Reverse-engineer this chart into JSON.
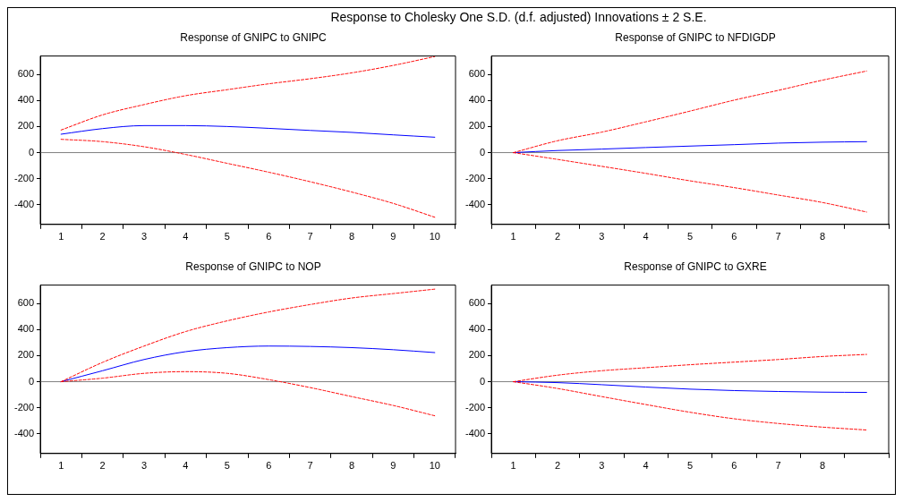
{
  "chart_data": [
    {
      "type": "line",
      "title": "Response of GNIPC to GNIPC",
      "annotations": [
        "Response to Cholesky One S.D. (d.f. adjusted) Innovations ± 2 S.E."
      ],
      "categories": [
        "1",
        "2",
        "3",
        "4",
        "5",
        "6",
        "7",
        "8",
        "9",
        "10"
      ],
      "ylim": [
        -550,
        740
      ],
      "yticks": [
        -400,
        -200,
        0,
        200,
        400,
        600
      ],
      "grid": false,
      "legend": false,
      "ref_lines": [
        {
          "axis": "y",
          "value": 0,
          "color": "#808080"
        }
      ],
      "series": [
        {
          "color": "#0000ff",
          "line_style": "solid",
          "values": [
            141,
            184,
            207,
            207,
            200,
            186,
            170,
            155,
            136,
            118
          ]
        },
        {
          "color": "#ff0000",
          "line_style": "dashed",
          "values": [
            173,
            289,
            368,
            436,
            482,
            527,
            566,
            611,
            668,
            736
          ]
        },
        {
          "color": "#ff0000",
          "line_style": "dashed",
          "values": [
            102,
            84,
            45,
            -14,
            -82,
            -150,
            -223,
            -302,
            -389,
            -495
          ]
        }
      ]
    },
    {
      "type": "line",
      "title": "Response of GNIPC to NFDIGDP",
      "categories": [
        "1",
        "2",
        "3",
        "4",
        "5",
        "6",
        "7",
        "8",
        null
      ],
      "ylim": [
        -550,
        740
      ],
      "yticks": [
        -400,
        -200,
        0,
        200,
        400,
        600
      ],
      "grid": false,
      "legend": false,
      "ref_lines": [
        {
          "axis": "y",
          "value": 0,
          "color": "#808080"
        }
      ],
      "series": [
        {
          "color": "#0000ff",
          "line_style": "solid",
          "values": [
            0,
            16,
            27,
            39,
            50,
            61,
            73,
            80,
            84
          ]
        },
        {
          "color": "#ff0000",
          "line_style": "dashed",
          "values": [
            0,
            91,
            157,
            236,
            318,
            402,
            477,
            555,
            625
          ]
        },
        {
          "color": "#ff0000",
          "line_style": "dashed",
          "values": [
            0,
            -52,
            -105,
            -159,
            -216,
            -268,
            -325,
            -382,
            -455
          ]
        }
      ]
    },
    {
      "type": "line",
      "title": "Response of GNIPC to NOP",
      "categories": [
        "1",
        "2",
        "3",
        "4",
        "5",
        "6",
        "7",
        "8",
        "9",
        "10"
      ],
      "ylim": [
        -550,
        740
      ],
      "yticks": [
        -400,
        -200,
        0,
        200,
        400,
        600
      ],
      "grid": false,
      "legend": false,
      "ref_lines": [
        {
          "axis": "y",
          "value": 0,
          "color": "#808080"
        }
      ],
      "series": [
        {
          "color": "#0000ff",
          "line_style": "solid",
          "values": [
            0,
            84,
            170,
            230,
            261,
            273,
            270,
            261,
            245,
            223
          ]
        },
        {
          "color": "#ff0000",
          "line_style": "dashed",
          "values": [
            0,
            148,
            273,
            384,
            466,
            534,
            591,
            641,
            675,
            709
          ]
        },
        {
          "color": "#ff0000",
          "line_style": "dashed",
          "values": [
            0,
            27,
            64,
            77,
            64,
            16,
            -45,
            -114,
            -182,
            -261
          ]
        }
      ]
    },
    {
      "type": "line",
      "title": "Response of GNIPC to GXRE",
      "categories": [
        "1",
        "2",
        "3",
        "4",
        "5",
        "6",
        "7",
        "8",
        null
      ],
      "ylim": [
        -550,
        740
      ],
      "yticks": [
        -400,
        -200,
        0,
        200,
        400,
        600
      ],
      "grid": false,
      "legend": false,
      "ref_lines": [
        {
          "axis": "y",
          "value": 0,
          "color": "#808080"
        }
      ],
      "series": [
        {
          "color": "#0000ff",
          "line_style": "solid",
          "values": [
            0,
            -7,
            -23,
            -41,
            -57,
            -68,
            -75,
            -80,
            -82
          ]
        },
        {
          "color": "#ff0000",
          "line_style": "dashed",
          "values": [
            0,
            50,
            84,
            107,
            130,
            150,
            170,
            193,
            209
          ]
        },
        {
          "color": "#ff0000",
          "line_style": "dashed",
          "values": [
            0,
            -52,
            -114,
            -175,
            -234,
            -284,
            -320,
            -348,
            -370
          ]
        }
      ]
    }
  ]
}
